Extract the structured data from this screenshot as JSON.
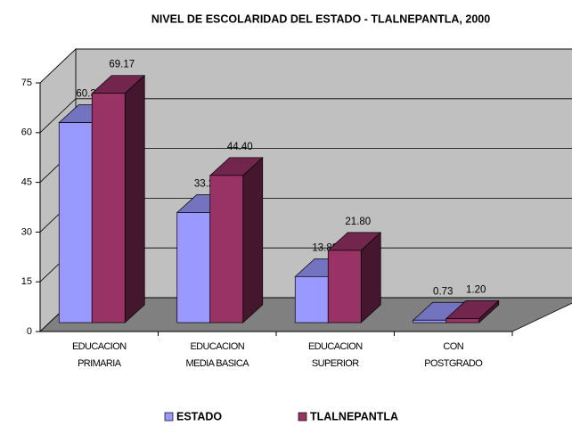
{
  "chart_data": {
    "type": "bar3d",
    "title": "NIVEL DE ESCOLARIDAD DEL ESTADO -  TLALNEPANTLA,  2000",
    "categories": [
      "EDUCACION\nPRIMARIA",
      "EDUCACION\nMEDIA BASICA",
      "EDUCACION\nSUPERIOR",
      "CON\nPOSTGRADO"
    ],
    "series": [
      {
        "name": "ESTADO",
        "color": "#9999ff",
        "values": [
          60.31,
          33.2,
          13.89,
          0.73
        ],
        "value_labels": [
          "60.31",
          "33.20",
          "13.89",
          "0.73"
        ]
      },
      {
        "name": "TLALNEPANTLA",
        "color": "#993366",
        "values": [
          69.17,
          44.4,
          21.8,
          1.2
        ],
        "value_labels": [
          "69.17",
          "44.40",
          "21.80",
          "1.20"
        ]
      }
    ],
    "ylim": [
      0,
      75
    ],
    "yticks": [
      0,
      15,
      30,
      45,
      60,
      75
    ],
    "grid": true,
    "legend": "bottom"
  }
}
